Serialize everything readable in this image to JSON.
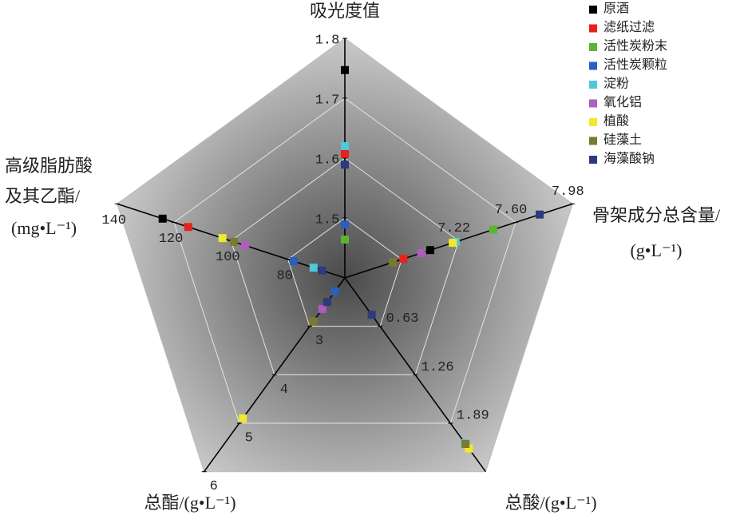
{
  "chart_data": {
    "type": "radar",
    "axes": [
      {
        "label": [
          "吸光度值"
        ],
        "lim": [
          1.4,
          1.8
        ],
        "ticks": [
          1.5,
          1.6,
          1.7,
          1.8
        ]
      },
      {
        "label": [
          "骨架成分总含量/",
          "(g•L⁻¹)"
        ],
        "lim": [
          6.46,
          7.98
        ],
        "ticks": [
          7.22,
          {
            "value": 7.6,
            "label": "7.60"
          },
          7.98
        ]
      },
      {
        "label": [
          "总酸/(g•L⁻¹)"
        ],
        "lim": [
          0,
          2.52
        ],
        "ticks": [
          0.63,
          1.26,
          1.89
        ]
      },
      {
        "label": [
          "总酯/(g•L⁻¹)"
        ],
        "lim": [
          2,
          6
        ],
        "ticks": [
          3,
          4,
          5,
          6
        ]
      },
      {
        "label": [
          "高级脂肪酸",
          "及其乙酯/",
          "(mg•L⁻¹)"
        ],
        "lim": [
          60,
          140
        ],
        "ticks": [
          80,
          100,
          120,
          140
        ]
      }
    ],
    "series": [
      {
        "name": "原酒",
        "color": "#000000",
        "values": [
          1.747,
          7.03,
          null,
          null,
          124
        ]
      },
      {
        "name": "滤纸过滤",
        "color": "#e8211b",
        "values": [
          1.607,
          6.85,
          null,
          null,
          115
        ]
      },
      {
        "name": "活性炭粉末",
        "color": "#5cb531",
        "values": [
          1.464,
          7.45,
          null,
          null,
          null
        ]
      },
      {
        "name": "活性炭颗粒",
        "color": "#2a5fc0",
        "values": [
          1.489,
          null,
          null,
          2.28,
          78
        ]
      },
      {
        "name": "淀粉",
        "color": "#4fc8d8",
        "values": [
          1.62,
          7.2,
          2.15,
          null,
          71
        ]
      },
      {
        "name": "氧化铝",
        "color": "#b05bbf",
        "values": [
          null,
          6.97,
          null,
          2.64,
          95
        ]
      },
      {
        "name": "植酸",
        "color": "#f0ea2a",
        "values": [
          null,
          7.18,
          2.22,
          4.9,
          103
        ]
      },
      {
        "name": "硅藻土",
        "color": "#7a7a2e",
        "values": [
          null,
          6.78,
          2.16,
          2.9,
          99
        ]
      },
      {
        "name": "海藻酸钠",
        "color": "#2e3a7c",
        "values": [
          1.589,
          7.76,
          0.48,
          2.5,
          68
        ]
      }
    ]
  }
}
